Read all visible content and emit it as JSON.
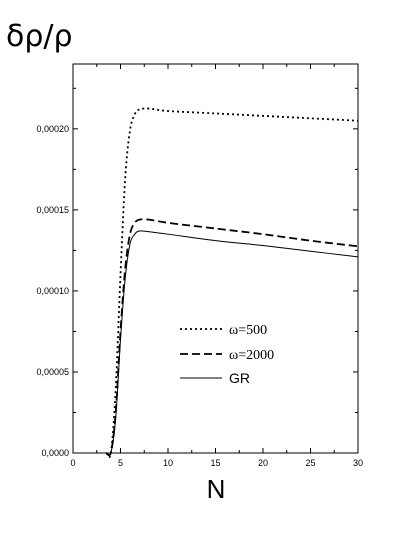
{
  "chart_data": {
    "type": "line",
    "title": "",
    "xlabel": "N",
    "ylabel": "δρ/ρ",
    "xlim": [
      0,
      30
    ],
    "ylim": [
      0,
      0.00024
    ],
    "x_ticks": [
      0,
      5,
      10,
      15,
      20,
      25,
      30
    ],
    "x_tick_labels": [
      "0",
      "5",
      "10",
      "15",
      "20",
      "25",
      "30"
    ],
    "y_ticks": [
      0,
      5e-05,
      0.0001,
      0.00015,
      0.0002
    ],
    "y_tick_labels": [
      "0,0000",
      "0,00005",
      "0,00010",
      "0,00015",
      "0,00020"
    ],
    "grid": false,
    "legend_position": "center-right",
    "series": [
      {
        "name": "ω=500",
        "style": "dotted",
        "color": "#000000",
        "x": [
          3.5,
          4.0,
          4.5,
          5.0,
          5.5,
          6.0,
          6.5,
          7.0,
          8.0,
          10,
          15,
          20,
          25,
          30
        ],
        "y": [
          0,
          5e-07,
          4e-05,
          0.00011,
          0.00017,
          0.000199,
          0.000209,
          0.000212,
          0.0002125,
          0.000211,
          0.0002095,
          0.000208,
          0.0002065,
          0.000205
        ]
      },
      {
        "name": "ω=2000",
        "style": "dashed",
        "color": "#000000",
        "x": [
          3.5,
          4.0,
          4.5,
          5.0,
          5.5,
          6.0,
          6.5,
          7.0,
          8.0,
          10,
          15,
          20,
          25,
          30
        ],
        "y": [
          0,
          5e-07,
          2.5e-05,
          7.5e-05,
          0.000114,
          0.000135,
          0.000142,
          0.000144,
          0.000144,
          0.000142,
          0.0001385,
          0.000135,
          0.000131,
          0.0001275
        ]
      },
      {
        "name": "GR",
        "style": "solid",
        "color": "#000000",
        "x": [
          3.5,
          4.0,
          4.5,
          5.0,
          5.5,
          6.0,
          6.5,
          7.0,
          8.0,
          10,
          15,
          20,
          25,
          30
        ],
        "y": [
          0,
          5e-07,
          2.2e-05,
          7e-05,
          0.000108,
          0.000129,
          0.000135,
          0.000137,
          0.0001365,
          0.000135,
          0.000131,
          0.000128,
          0.0001245,
          0.000121
        ]
      }
    ]
  }
}
